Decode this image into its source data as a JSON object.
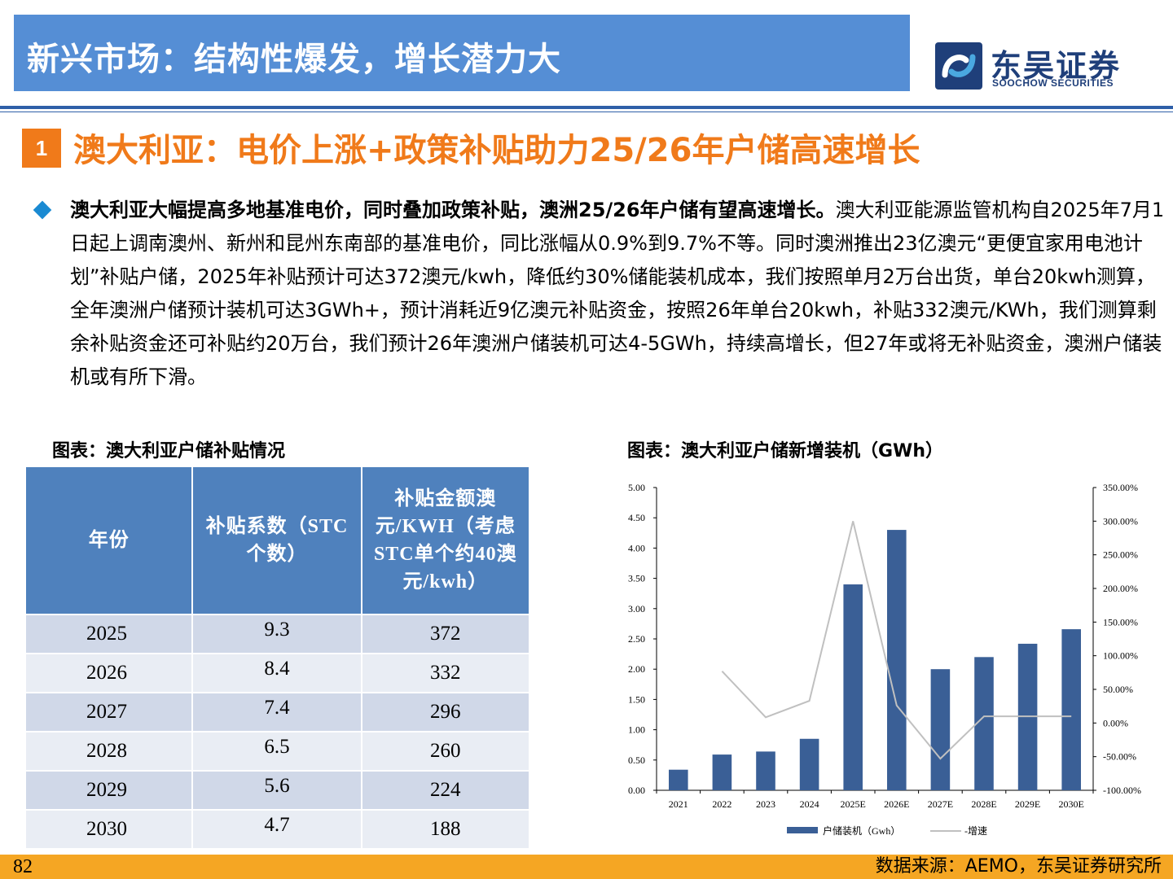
{
  "header": {
    "title": "新兴市场：结构性爆发，增长潜力大",
    "logo_cn": "东吴证券",
    "logo_en": "SOOCHOW SECURITIES"
  },
  "section": {
    "number": "1",
    "title": "澳大利亚：电价上涨+政策补贴助力25/26年户储高速增长"
  },
  "paragraph": {
    "lead": "澳大利亚大幅提高多地基准电价，同时叠加政策补贴，澳洲25/26年户储有望高速增长。",
    "body": "澳大利亚能源监管机构自2025年7月1日起上调南澳州、新州和昆州东南部的基准电价，同比涨幅从0.9%到9.7%不等。同时澳洲推出23亿澳元“更便宜家用电池计划”补贴户储，2025年补贴预计可达372澳元/kwh，降低约30%储能装机成本，我们按照单月2万台出货，单台20kwh测算，全年澳洲户储预计装机可达3GWh+，预计消耗近9亿澳元补贴资金，按照26年单台20kwh，补贴332澳元/KWh，我们测算剩余补贴资金还可补贴约20万台，我们预计26年澳洲户储装机可达4-5GWh，持续高增长，但27年或将无补贴资金，澳洲户储装机或有所下滑。"
  },
  "table": {
    "caption": "图表：澳大利亚户储补贴情况",
    "headers": [
      "年份",
      "补贴系数（STC个数）",
      "补贴金额澳元/KWH（考虑STC单个约40澳元/kwh）"
    ],
    "rows": [
      [
        "2025",
        "9.3",
        "372"
      ],
      [
        "2026",
        "8.4",
        "332"
      ],
      [
        "2027",
        "7.4",
        "296"
      ],
      [
        "2028",
        "6.5",
        "260"
      ],
      [
        "2029",
        "5.6",
        "224"
      ],
      [
        "2030",
        "4.7",
        "188"
      ]
    ]
  },
  "chart_caption": "图表：澳大利亚户储新增装机（GWh）",
  "chart_data": {
    "type": "bar",
    "categories": [
      "2021",
      "2022",
      "2023",
      "2024",
      "2025E",
      "2026E",
      "2027E",
      "2028E",
      "2029E",
      "2030E"
    ],
    "series": [
      {
        "name": "户储装机（Gwh）",
        "type": "bar",
        "axis": "left",
        "color": "#3a5f96",
        "values": [
          0.34,
          0.59,
          0.64,
          0.85,
          3.4,
          4.3,
          2.0,
          2.2,
          2.42,
          2.66
        ]
      },
      {
        "name": "-增速",
        "type": "line",
        "axis": "right",
        "color": "#c0c0c0",
        "values": [
          null,
          77.0,
          8.5,
          33.0,
          300.0,
          26.0,
          -53.0,
          10.0,
          10.0,
          10.0
        ]
      }
    ],
    "ylim": [
      0,
      5
    ],
    "yticks": [
      "0.00",
      "0.50",
      "1.00",
      "1.50",
      "2.00",
      "2.50",
      "3.00",
      "3.50",
      "4.00",
      "4.50",
      "5.00"
    ],
    "y2lim": [
      -100,
      350
    ],
    "y2ticks": [
      "-100.00%",
      "-50.00%",
      "0.00%",
      "50.00%",
      "100.00%",
      "150.00%",
      "200.00%",
      "250.00%",
      "300.00%",
      "350.00%"
    ],
    "legend": "bottom"
  },
  "footer": {
    "page": "82",
    "source": "数据来源：AEMO，东吴证券研究所"
  },
  "colors": {
    "title_bar": "#558ed5",
    "accent_orange": "#f07a1a",
    "footer": "#f5a623",
    "table_header": "#4f81bd"
  }
}
